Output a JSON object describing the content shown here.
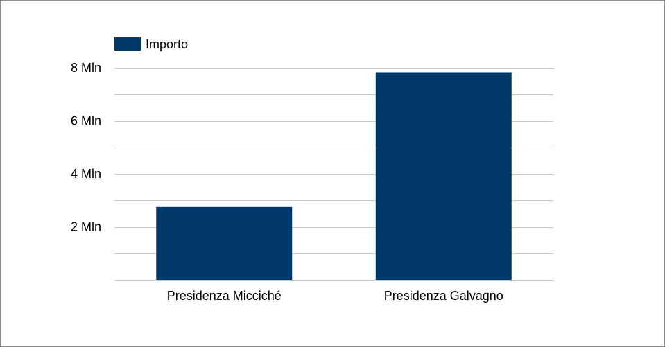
{
  "chart_data": {
    "type": "bar",
    "categories": [
      "Presidenza Micciché",
      "Presidenza Galvagno"
    ],
    "series": [
      {
        "name": "Importo",
        "values": [
          2.75,
          7.83
        ],
        "color": "#003869"
      }
    ],
    "ylim": [
      0,
      8
    ],
    "yticks": [
      {
        "value": 2,
        "label": "2 Mln"
      },
      {
        "value": 4,
        "label": "4 Mln"
      },
      {
        "value": 6,
        "label": "6 Mln"
      },
      {
        "value": 8,
        "label": "8 Mln"
      }
    ],
    "minor_gridline_step": 1,
    "grid": true,
    "legend": {
      "position": "top-left"
    },
    "gridline_color": "#c8c8c8"
  }
}
